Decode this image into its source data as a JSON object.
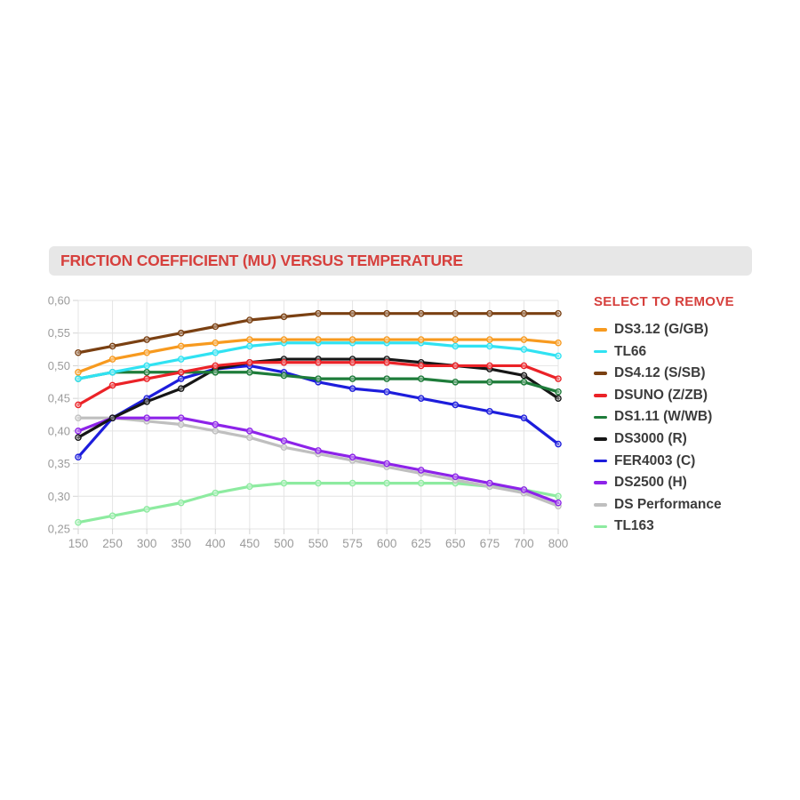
{
  "header": {
    "title": "FRICTION COEFFICIENT (MU) VERSUS TEMPERATURE",
    "bg_color": "#e7e7e7",
    "text_color": "#d6403d"
  },
  "legend": {
    "title": "SELECT TO REMOVE",
    "title_color": "#d6403d",
    "label_color": "#3c3c3c"
  },
  "chart_data": {
    "type": "line",
    "title": "FRICTION COEFFICIENT (MU) VERSUS TEMPERATURE",
    "xlabel": "",
    "ylabel": "",
    "grid": true,
    "legend_position": "right",
    "ylim": [
      0.25,
      0.6
    ],
    "y_tick_values": [
      0.6,
      0.55,
      0.5,
      0.45,
      0.4,
      0.35,
      0.3,
      0.25
    ],
    "y_tick_labels": [
      "0,60",
      "0,55",
      "0,50",
      "0,45",
      "0,40",
      "0,35",
      "0,30",
      "0,25"
    ],
    "x_tick_labels": [
      "150",
      "250",
      "300",
      "350",
      "400",
      "450",
      "500",
      "550",
      "575",
      "600",
      "625",
      "650",
      "675",
      "700",
      "800"
    ],
    "grid_color": "#e4e4e4",
    "tick_color": "#d2d2d2",
    "axis_label_color": "#9b9b9b",
    "series": [
      {
        "name": "DS3.12 (G/GB)",
        "color": "#f79a1f",
        "values": [
          0.49,
          0.51,
          0.52,
          0.53,
          0.535,
          0.54,
          0.54,
          0.54,
          0.54,
          0.54,
          0.54,
          0.54,
          0.54,
          0.54,
          0.535
        ]
      },
      {
        "name": "TL66",
        "color": "#30e2f2",
        "values": [
          0.48,
          0.49,
          0.5,
          0.51,
          0.52,
          0.53,
          0.535,
          0.535,
          0.535,
          0.535,
          0.535,
          0.53,
          0.53,
          0.525,
          0.515
        ]
      },
      {
        "name": "DS4.12 (S/SB)",
        "color": "#7a4012",
        "values": [
          0.52,
          0.53,
          0.54,
          0.55,
          0.56,
          0.57,
          0.575,
          0.58,
          0.58,
          0.58,
          0.58,
          0.58,
          0.58,
          0.58,
          0.58
        ]
      },
      {
        "name": "DSUNO (Z/ZB)",
        "color": "#eb2227",
        "values": [
          0.44,
          0.47,
          0.48,
          0.49,
          0.5,
          0.505,
          0.505,
          0.505,
          0.505,
          0.505,
          0.5,
          0.5,
          0.5,
          0.5,
          0.48
        ]
      },
      {
        "name": "DS1.11 (W/WB)",
        "color": "#1e7c3a",
        "values": [
          0.48,
          0.49,
          0.49,
          0.49,
          0.49,
          0.49,
          0.485,
          0.48,
          0.48,
          0.48,
          0.48,
          0.475,
          0.475,
          0.475,
          0.46
        ]
      },
      {
        "name": "DS3000 (R)",
        "color": "#161616",
        "values": [
          0.39,
          0.42,
          0.445,
          0.465,
          0.495,
          0.505,
          0.51,
          0.51,
          0.51,
          0.51,
          0.505,
          0.5,
          0.495,
          0.485,
          0.45
        ]
      },
      {
        "name": "FER4003 (C)",
        "color": "#1d1ddc",
        "values": [
          0.36,
          0.42,
          0.45,
          0.48,
          0.495,
          0.5,
          0.49,
          0.475,
          0.465,
          0.46,
          0.45,
          0.44,
          0.43,
          0.42,
          0.38
        ]
      },
      {
        "name": "DS2500 (H)",
        "color": "#8d23e9",
        "values": [
          0.4,
          0.42,
          0.42,
          0.42,
          0.41,
          0.4,
          0.385,
          0.37,
          0.36,
          0.35,
          0.34,
          0.33,
          0.32,
          0.31,
          0.29
        ]
      },
      {
        "name": "DS Performance",
        "color": "#bfbfbf",
        "values": [
          0.42,
          0.42,
          0.415,
          0.41,
          0.4,
          0.39,
          0.375,
          0.365,
          0.355,
          0.345,
          0.335,
          0.325,
          0.315,
          0.305,
          0.285
        ]
      },
      {
        "name": "TL163",
        "color": "#8deba0",
        "values": [
          0.26,
          0.27,
          0.28,
          0.29,
          0.305,
          0.315,
          0.32,
          0.32,
          0.32,
          0.32,
          0.32,
          0.32,
          0.315,
          0.31,
          0.3
        ]
      }
    ]
  }
}
